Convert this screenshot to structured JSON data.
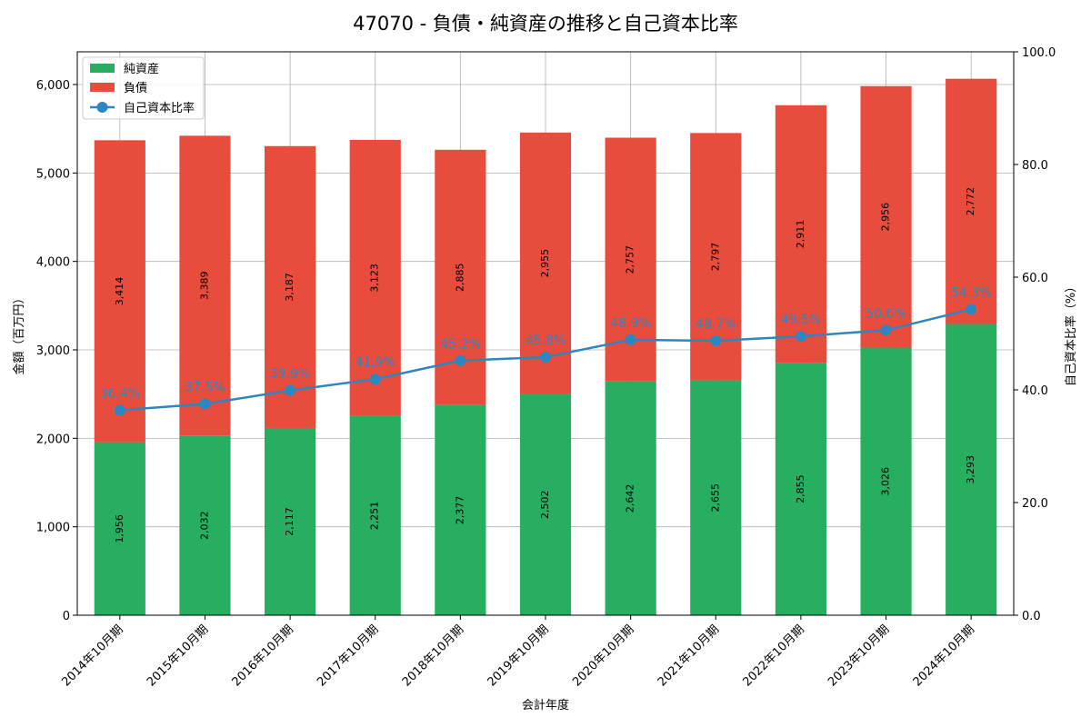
{
  "chart_data": {
    "type": "bar",
    "title": "47070 - 負債・純資産の推移と自己資本比率",
    "xlabel": "会計年度",
    "ylabel": "金額（百万円）",
    "y2label": "自己資本比率（%）",
    "categories": [
      "2014年10月期",
      "2015年10月期",
      "2016年10月期",
      "2017年10月期",
      "2018年10月期",
      "2019年10月期",
      "2020年10月期",
      "2021年10月期",
      "2022年10月期",
      "2023年10月期",
      "2024年10月期"
    ],
    "series": [
      {
        "name": "純資産",
        "kind": "bar-stacked",
        "color": "#27ae60",
        "values": [
          1956,
          2032,
          2117,
          2251,
          2377,
          2502,
          2642,
          2655,
          2855,
          3026,
          3293
        ]
      },
      {
        "name": "負債",
        "kind": "bar-stacked",
        "color": "#e74c3c",
        "values": [
          3414,
          3389,
          3187,
          3123,
          2885,
          2955,
          2757,
          2797,
          2911,
          2956,
          2772
        ]
      },
      {
        "name": "自己資本比率",
        "kind": "line",
        "axis": "right",
        "color": "#2e86c1",
        "values": [
          36.4,
          37.5,
          39.9,
          41.9,
          45.2,
          45.8,
          48.9,
          48.7,
          49.5,
          50.6,
          54.3
        ]
      }
    ],
    "bar_labels": {
      "純資産": [
        "1,956",
        "2,032",
        "2,117",
        "2,251",
        "2,377",
        "2,502",
        "2,642",
        "2,655",
        "2,855",
        "3,026",
        "3,293"
      ],
      "負債": [
        "3,414",
        "3,389",
        "3,187",
        "3,123",
        "2,885",
        "2,955",
        "2,757",
        "2,797",
        "2,911",
        "2,956",
        "2,772"
      ]
    },
    "ratio_labels": [
      "36.4%",
      "37.5%",
      "39.9%",
      "41.9%",
      "45.2%",
      "45.8%",
      "48.9%",
      "48.7%",
      "49.5%",
      "50.6%",
      "54.3%"
    ],
    "ylim": [
      0,
      6370
    ],
    "y_ticks": [
      0,
      1000,
      2000,
      3000,
      4000,
      5000,
      6000
    ],
    "y_tick_labels": [
      "0",
      "1,000",
      "2,000",
      "3,000",
      "4,000",
      "5,000",
      "6,000"
    ],
    "y2lim": [
      0,
      100
    ],
    "y2_ticks": [
      0,
      20,
      40,
      60,
      80,
      100
    ],
    "y2_tick_labels": [
      "0.0",
      "20.0",
      "40.0",
      "60.0",
      "80.0",
      "100.0"
    ],
    "grid": true,
    "legend_position": "top-left"
  }
}
